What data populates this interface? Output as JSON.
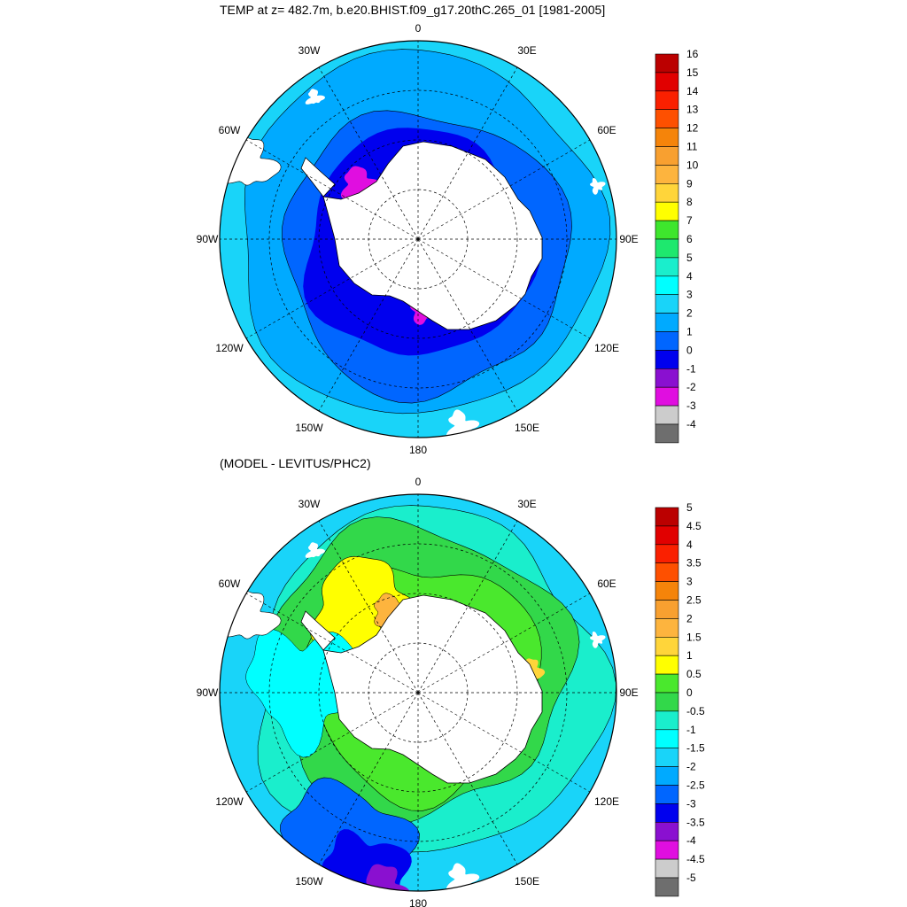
{
  "titles": {
    "top": "TEMP at z= 482.7m, b.e20.BHIST.f09_g17.20thC.265_01 [1981-2005]",
    "bottom": "(MODEL - LEVITUS/PHC2)"
  },
  "longitude_labels": [
    "0",
    "30E",
    "60E",
    "90E",
    "120E",
    "150E",
    "180",
    "150W",
    "120W",
    "90W",
    "60W",
    "30W"
  ],
  "colors": {
    "land": "#ffffff",
    "coast": "#000000",
    "grid": "#000000"
  },
  "panels": [
    {
      "id": "temp",
      "colorbar": {
        "labels": [
          "16",
          "15",
          "14",
          "13",
          "12",
          "11",
          "10",
          "9",
          "8",
          "7",
          "6",
          "5",
          "4",
          "3",
          "2",
          "1",
          "0",
          "-1",
          "-2",
          "-3",
          "-4"
        ],
        "colors": [
          "#bb0000",
          "#e10000",
          "#fa2000",
          "#fe5000",
          "#f5840a",
          "#f8a030",
          "#fdb43e",
          "#ffd53a",
          "#ffff00",
          "#3ee62d",
          "#1ee86e",
          "#1aeecc",
          "#00ffff",
          "#19d4f9",
          "#00aaff",
          "#0066ff",
          "#0000ee",
          "#8a10d0",
          "#e00ee0",
          "#cccccc",
          "#6e6e6e"
        ]
      }
    },
    {
      "id": "diff",
      "colorbar": {
        "labels": [
          "5",
          "4.5",
          "4",
          "3.5",
          "3",
          "2.5",
          "2",
          "1.5",
          "1",
          "0.5",
          "0",
          "-0.5",
          "-1",
          "-1.5",
          "-2",
          "-2.5",
          "-3",
          "-3.5",
          "-4",
          "-4.5",
          "-5"
        ],
        "colors": [
          "#bb0000",
          "#e10000",
          "#fa2000",
          "#fe5000",
          "#f5840a",
          "#f8a030",
          "#fdb43e",
          "#ffd53a",
          "#ffff00",
          "#4ae82d",
          "#32d84a",
          "#1aeecc",
          "#00ffff",
          "#19d4f9",
          "#00aaff",
          "#0066ff",
          "#0000ee",
          "#8a10d0",
          "#e00ee0",
          "#cccccc",
          "#6e6e6e"
        ]
      }
    }
  ]
}
